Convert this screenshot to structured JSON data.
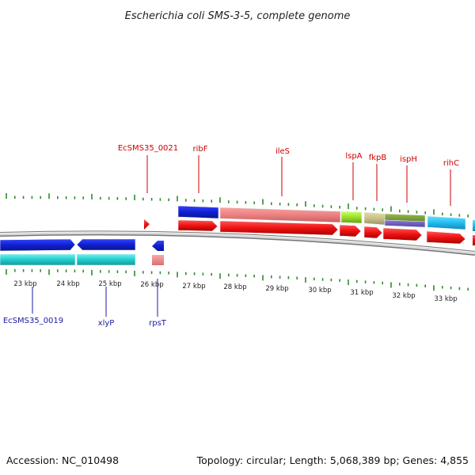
{
  "title": "Escherichia coli SMS-3-5, complete genome",
  "footer": {
    "accession": "Accession: NC_010498",
    "summary": "Topology: circular; Length: 5,068,389 bp; Genes: 4,855"
  },
  "scale": {
    "labels": [
      "23 kbp",
      "24 kbp",
      "25 kbp",
      "26 kbp",
      "27 kbp",
      "28 kbp",
      "29 kbp",
      "30 kbp",
      "31 kbp",
      "32 kbp",
      "33 kbp"
    ]
  },
  "gene_labels_top": [
    "EcSMS35_0021",
    "ribF",
    "ileS",
    "lspA",
    "fkpB",
    "ispH",
    "rihC"
  ],
  "gene_labels_bottom": [
    "EcSMS35_0019",
    "xlyP",
    "rpsT"
  ],
  "colors": {
    "tick": "#2e8b2e",
    "backbone": "#888888",
    "cds_forward": "#ee1111",
    "cds_reverse": "#1122dd",
    "label_top": "#cc0000",
    "label_bottom": "#1a1aa6"
  }
}
